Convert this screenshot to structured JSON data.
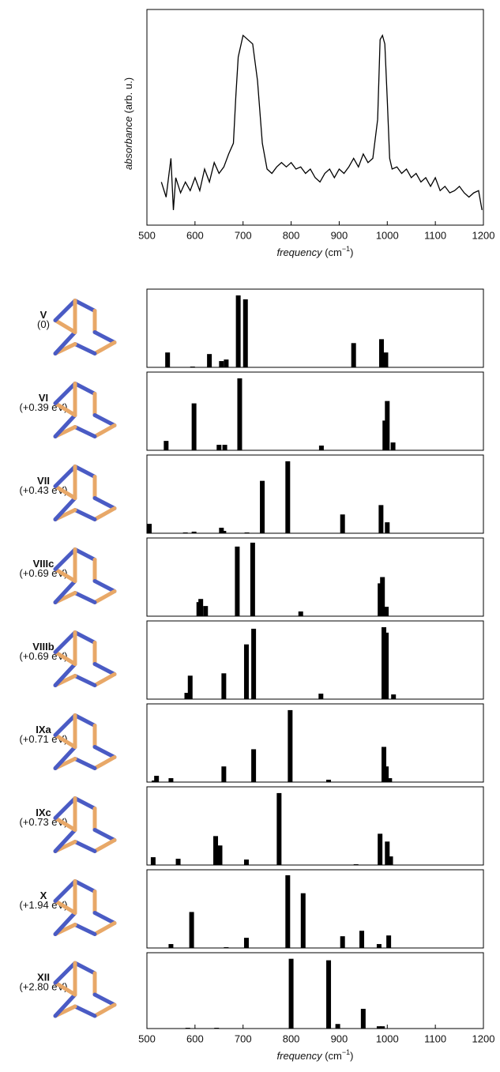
{
  "chart_data": [
    {
      "type": "line",
      "xlabel": [
        "frequency",
        " (cm",
        "−1",
        ")"
      ],
      "ylabel": [
        "absorbance",
        " (arb. u.)"
      ],
      "color": "#000000",
      "xlim": [
        500,
        1200
      ],
      "ylim": [
        0,
        1
      ],
      "xticks": [
        500,
        600,
        700,
        800,
        900,
        1000,
        1100,
        1200
      ],
      "x": [
        530,
        540,
        550,
        555,
        560,
        570,
        580,
        590,
        600,
        610,
        620,
        630,
        640,
        650,
        660,
        670,
        680,
        685,
        690,
        700,
        710,
        720,
        730,
        740,
        750,
        760,
        770,
        780,
        790,
        800,
        810,
        820,
        830,
        840,
        850,
        860,
        870,
        880,
        890,
        900,
        910,
        920,
        930,
        940,
        950,
        960,
        970,
        980,
        985,
        990,
        995,
        1000,
        1005,
        1010,
        1020,
        1030,
        1040,
        1050,
        1060,
        1070,
        1080,
        1090,
        1100,
        1110,
        1120,
        1130,
        1140,
        1150,
        1160,
        1170,
        1180,
        1190,
        1197
      ],
      "values": [
        0.2,
        0.13,
        0.31,
        0.07,
        0.22,
        0.15,
        0.2,
        0.16,
        0.22,
        0.16,
        0.26,
        0.2,
        0.29,
        0.24,
        0.27,
        0.33,
        0.38,
        0.6,
        0.78,
        0.88,
        0.86,
        0.84,
        0.67,
        0.38,
        0.26,
        0.24,
        0.27,
        0.29,
        0.27,
        0.29,
        0.26,
        0.27,
        0.24,
        0.26,
        0.22,
        0.2,
        0.24,
        0.26,
        0.22,
        0.26,
        0.24,
        0.27,
        0.31,
        0.27,
        0.33,
        0.29,
        0.31,
        0.49,
        0.86,
        0.88,
        0.84,
        0.58,
        0.31,
        0.26,
        0.27,
        0.24,
        0.26,
        0.22,
        0.24,
        0.2,
        0.22,
        0.18,
        0.22,
        0.16,
        0.18,
        0.15,
        0.16,
        0.18,
        0.15,
        0.13,
        0.15,
        0.16,
        0.07
      ]
    },
    {
      "type": "bar",
      "title": "V",
      "subtitle": "(0)",
      "color": "#000000",
      "xlim": [
        500,
        1200
      ],
      "ylim": [
        0,
        1
      ],
      "x": [
        543,
        595,
        630,
        655,
        665,
        690,
        705,
        930,
        988,
        997
      ],
      "values": [
        0.19,
        0.01,
        0.17,
        0.08,
        0.1,
        0.92,
        0.87,
        0.31,
        0.36,
        0.19
      ]
    },
    {
      "type": "bar",
      "title": "VI",
      "subtitle": "(+0.39 eV)",
      "color": "#000000",
      "xlim": [
        500,
        1200
      ],
      "ylim": [
        0,
        1
      ],
      "x": [
        540,
        598,
        650,
        662,
        693,
        863,
        995,
        1000,
        1012
      ],
      "values": [
        0.12,
        0.6,
        0.07,
        0.07,
        0.92,
        0.06,
        0.38,
        0.63,
        0.1
      ]
    },
    {
      "type": "bar",
      "title": "VII",
      "subtitle": "(+0.43 eV)",
      "color": "#000000",
      "xlim": [
        500,
        1200
      ],
      "ylim": [
        0,
        1
      ],
      "x": [
        505,
        580,
        598,
        655,
        660,
        708,
        740,
        793,
        907,
        987,
        1000
      ],
      "values": [
        0.12,
        0.01,
        0.02,
        0.07,
        0.03,
        0.01,
        0.67,
        0.92,
        0.24,
        0.36,
        0.14
      ]
    },
    {
      "type": "bar",
      "title": "VIIIc",
      "subtitle": "(+0.69 eV)",
      "color": "#000000",
      "xlim": [
        500,
        1200
      ],
      "ylim": [
        0,
        1
      ],
      "x": [
        608,
        612,
        622,
        688,
        720,
        820,
        985,
        990,
        998
      ],
      "values": [
        0.18,
        0.22,
        0.13,
        0.89,
        0.94,
        0.06,
        0.42,
        0.5,
        0.12
      ]
    },
    {
      "type": "bar",
      "title": "VIIIb",
      "subtitle": "(+0.69 eV)",
      "color": "#000000",
      "xlim": [
        500,
        1200
      ],
      "ylim": [
        0,
        1
      ],
      "x": [
        583,
        590,
        660,
        707,
        722,
        862,
        993,
        998,
        1013
      ],
      "values": [
        0.08,
        0.3,
        0.33,
        0.7,
        0.9,
        0.07,
        0.92,
        0.85,
        0.06
      ]
    },
    {
      "type": "bar",
      "title": "IXa",
      "subtitle": "(+0.71 eV)",
      "color": "#000000",
      "xlim": [
        500,
        1200
      ],
      "ylim": [
        0,
        1
      ],
      "x": [
        515,
        520,
        550,
        660,
        722,
        798,
        878,
        993,
        998,
        1005
      ],
      "values": [
        0.02,
        0.08,
        0.05,
        0.2,
        0.42,
        0.92,
        0.03,
        0.45,
        0.2,
        0.05
      ]
    },
    {
      "type": "bar",
      "title": "IXc",
      "subtitle": "(+0.73 eV)",
      "color": "#000000",
      "xlim": [
        500,
        1200
      ],
      "ylim": [
        0,
        1
      ],
      "x": [
        513,
        565,
        643,
        652,
        707,
        775,
        935,
        985,
        1000,
        1007
      ],
      "values": [
        0.1,
        0.08,
        0.37,
        0.25,
        0.07,
        0.92,
        0.01,
        0.4,
        0.3,
        0.11
      ]
    },
    {
      "type": "bar",
      "title": "X",
      "subtitle": "(+1.94 eV)",
      "color": "#000000",
      "xlim": [
        500,
        1200
      ],
      "ylim": [
        0,
        1
      ],
      "x": [
        550,
        593,
        665,
        707,
        793,
        825,
        907,
        947,
        983,
        1003
      ],
      "values": [
        0.05,
        0.46,
        0.01,
        0.13,
        0.93,
        0.7,
        0.15,
        0.22,
        0.05,
        0.16
      ]
    },
    {
      "type": "bar",
      "title": "XII",
      "subtitle": "(+2.80 eV)",
      "color": "#000000",
      "xlim": [
        500,
        1200
      ],
      "ylim": [
        0,
        1
      ],
      "xticks": [
        500,
        600,
        700,
        800,
        900,
        1000,
        1100,
        1200
      ],
      "xlabel": [
        "frequency",
        " (cm",
        "−1",
        ")"
      ],
      "x": [
        585,
        645,
        800,
        878,
        897,
        950,
        983,
        990
      ],
      "values": [
        0.01,
        0.01,
        0.92,
        0.9,
        0.06,
        0.26,
        0.03,
        0.03
      ]
    }
  ]
}
